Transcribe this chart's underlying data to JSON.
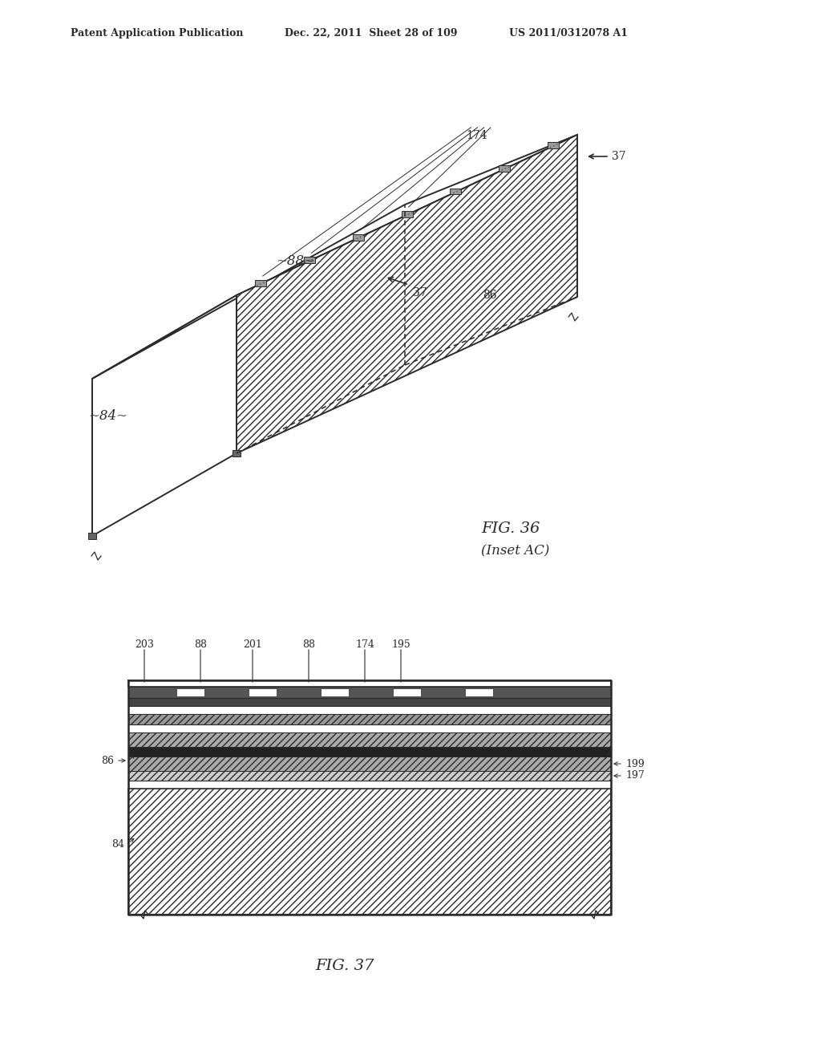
{
  "header_left": "Patent Application Publication",
  "header_mid": "Dec. 22, 2011  Sheet 28 of 109",
  "header_right": "US 2011/0312078 A1",
  "fig36_caption": "FIG. 36",
  "fig36_subcaption": "(Inset AC)",
  "fig37_caption": "FIG. 37",
  "bg_color": "#ffffff",
  "line_color": "#2a2a2a"
}
